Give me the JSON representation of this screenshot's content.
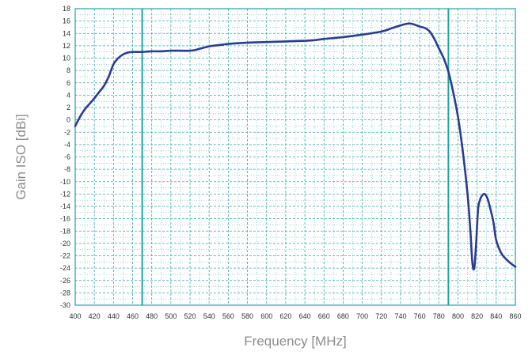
{
  "chart_data": {
    "type": "line",
    "title": "",
    "xlabel": "Frequency [MHz]",
    "ylabel": "Gain ISO [dBi]",
    "xlim": [
      400,
      860
    ],
    "ylim": [
      -30,
      18
    ],
    "x_major_ticks": [
      400,
      420,
      440,
      460,
      480,
      500,
      520,
      540,
      560,
      580,
      600,
      620,
      640,
      660,
      680,
      700,
      720,
      740,
      760,
      780,
      800,
      820,
      840,
      860
    ],
    "y_major_ticks": [
      18,
      16,
      14,
      12,
      10,
      8,
      6,
      4,
      2,
      0,
      -2,
      -4,
      -6,
      -8,
      -10,
      -12,
      -14,
      -16,
      -18,
      -20,
      -22,
      -24,
      -26,
      -28,
      -30
    ],
    "grid": true,
    "legend": "none",
    "vertical_markers": [
      470,
      790
    ],
    "colors": {
      "line": "#2b3b8e",
      "grid": "#3aa8a8",
      "marker": "#1fa3a3",
      "frame": "#1fa3a3"
    },
    "series": [
      {
        "x": [
          400,
          405,
          410,
          415,
          420,
          425,
          430,
          435,
          440,
          445,
          450,
          455,
          460,
          465,
          470,
          480,
          490,
          500,
          510,
          520,
          525,
          530,
          540,
          550,
          560,
          580,
          600,
          620,
          640,
          650,
          660,
          680,
          700,
          720,
          730,
          740,
          745,
          750,
          755,
          760,
          765,
          770,
          775,
          780,
          785,
          790,
          795,
          800,
          805,
          810,
          813,
          815,
          817,
          819,
          821,
          823,
          825,
          828,
          831,
          834,
          837,
          840,
          845,
          850,
          855,
          860
        ],
        "values": [
          -1.0,
          0.5,
          1.7,
          2.6,
          3.5,
          4.5,
          5.5,
          7.0,
          9.0,
          10.0,
          10.6,
          10.9,
          11.0,
          11.0,
          11.0,
          11.1,
          11.1,
          11.2,
          11.2,
          11.2,
          11.3,
          11.5,
          11.9,
          12.1,
          12.3,
          12.5,
          12.6,
          12.7,
          12.8,
          12.9,
          13.1,
          13.4,
          13.8,
          14.3,
          14.8,
          15.3,
          15.5,
          15.6,
          15.4,
          15.1,
          14.9,
          14.4,
          13.2,
          11.6,
          10.0,
          7.8,
          4.5,
          0.5,
          -5.0,
          -12.0,
          -18.0,
          -23.0,
          -24.0,
          -20.0,
          -14.5,
          -13.0,
          -12.3,
          -12.0,
          -12.8,
          -14.5,
          -16.5,
          -19.5,
          -21.5,
          -22.5,
          -23.2,
          -23.8
        ]
      }
    ]
  }
}
